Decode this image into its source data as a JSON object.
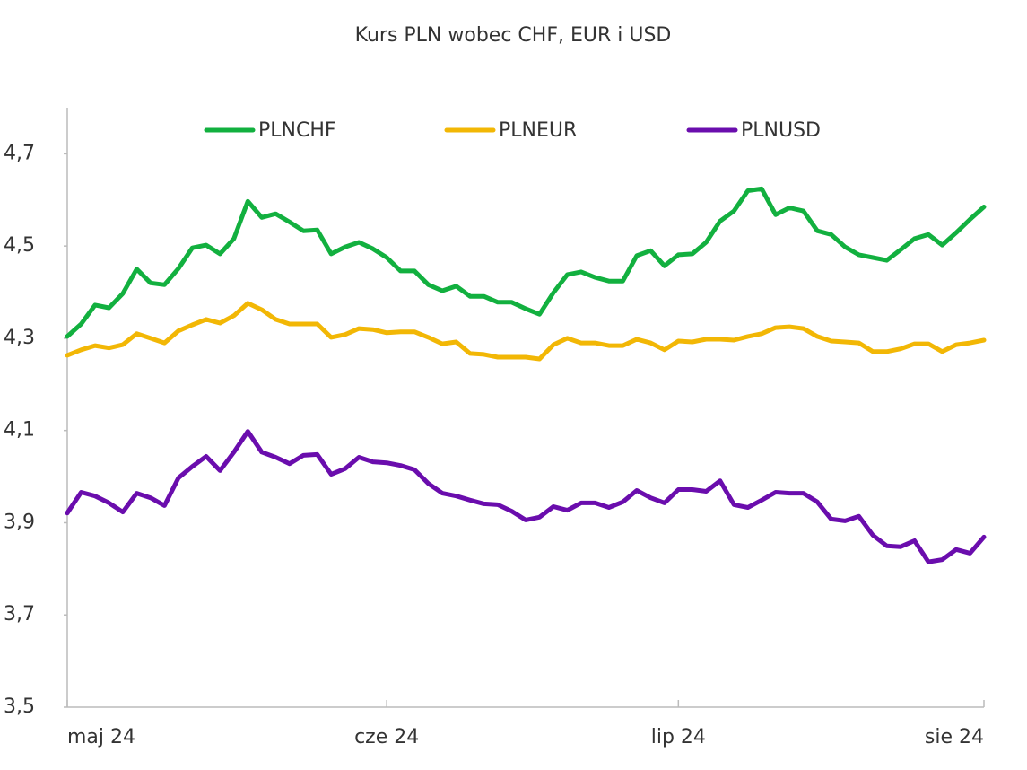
{
  "chart_data": {
    "type": "line",
    "title": "Kurs PLN wobec CHF, EUR i USD",
    "categories": [
      "maj 24",
      null,
      null,
      null,
      null,
      null,
      null,
      null,
      null,
      null,
      null,
      null,
      null,
      null,
      null,
      null,
      null,
      null,
      null,
      null,
      null,
      null,
      null,
      "cze 24",
      null,
      null,
      null,
      null,
      null,
      null,
      null,
      null,
      null,
      null,
      null,
      null,
      null,
      null,
      null,
      null,
      null,
      null,
      null,
      null,
      "lip 24",
      null,
      null,
      null,
      null,
      null,
      null,
      null,
      null,
      null,
      null,
      null,
      null,
      null,
      null,
      null,
      null,
      null,
      null,
      null,
      null,
      null,
      "sie 24"
    ],
    "series": [
      {
        "name": "PLNCHF",
        "color": "#12b03f",
        "values": [
          4.304,
          4.331,
          4.372,
          4.366,
          4.397,
          4.45,
          4.42,
          4.416,
          4.451,
          4.496,
          4.502,
          4.483,
          4.516,
          4.597,
          4.562,
          4.57,
          4.552,
          4.533,
          4.535,
          4.483,
          4.498,
          4.508,
          4.494,
          4.475,
          4.446,
          4.446,
          4.416,
          4.403,
          4.413,
          4.391,
          4.391,
          4.378,
          4.378,
          4.364,
          4.352,
          4.399,
          4.438,
          4.444,
          4.432,
          4.424,
          4.424,
          4.479,
          4.49,
          4.457,
          4.481,
          4.483,
          4.508,
          4.554,
          4.576,
          4.62,
          4.624,
          4.568,
          4.583,
          4.576,
          4.533,
          4.525,
          4.498,
          4.481,
          4.475,
          4.469,
          4.492,
          4.516,
          4.525,
          4.502,
          4.529,
          4.558,
          4.585
        ]
      },
      {
        "name": "PLNEUR",
        "color": "#f2b705",
        "values": [
          4.263,
          4.275,
          4.284,
          4.279,
          4.286,
          4.31,
          4.3,
          4.29,
          4.316,
          4.329,
          4.341,
          4.333,
          4.349,
          4.376,
          4.362,
          4.341,
          4.331,
          4.331,
          4.331,
          4.302,
          4.308,
          4.321,
          4.319,
          4.312,
          4.314,
          4.314,
          4.302,
          4.288,
          4.292,
          4.267,
          4.265,
          4.259,
          4.259,
          4.259,
          4.255,
          4.286,
          4.3,
          4.29,
          4.29,
          4.284,
          4.284,
          4.298,
          4.29,
          4.275,
          4.294,
          4.292,
          4.298,
          4.298,
          4.296,
          4.304,
          4.31,
          4.323,
          4.325,
          4.321,
          4.304,
          4.294,
          4.292,
          4.29,
          4.271,
          4.271,
          4.277,
          4.288,
          4.288,
          4.271,
          4.286,
          4.29,
          4.296
        ]
      },
      {
        "name": "PLNUSD",
        "color": "#6a0dad",
        "values": [
          3.921,
          3.966,
          3.958,
          3.943,
          3.923,
          3.964,
          3.954,
          3.937,
          3.997,
          4.022,
          4.044,
          4.013,
          4.053,
          4.098,
          4.053,
          4.042,
          4.028,
          4.046,
          4.048,
          4.005,
          4.017,
          4.042,
          4.032,
          4.03,
          4.024,
          4.015,
          3.985,
          3.964,
          3.958,
          3.949,
          3.941,
          3.939,
          3.925,
          3.906,
          3.912,
          3.935,
          3.927,
          3.943,
          3.943,
          3.933,
          3.945,
          3.97,
          3.954,
          3.943,
          3.972,
          3.972,
          3.968,
          3.991,
          3.939,
          3.933,
          3.949,
          3.966,
          3.964,
          3.964,
          3.945,
          3.908,
          3.904,
          3.914,
          3.873,
          3.85,
          3.848,
          3.861,
          3.815,
          3.82,
          3.842,
          3.834,
          3.869
        ]
      }
    ],
    "ylim": [
      3.5,
      4.8
    ],
    "yticks": [
      {
        "value": 3.5,
        "label": "3,5"
      },
      {
        "value": 3.7,
        "label": "3,7"
      },
      {
        "value": 3.9,
        "label": "3,9"
      },
      {
        "value": 4.1,
        "label": "4,1"
      },
      {
        "value": 4.3,
        "label": "4,3"
      },
      {
        "value": 4.5,
        "label": "4,5"
      },
      {
        "value": 4.7,
        "label": "4,7"
      }
    ],
    "grid": false,
    "legend": "top"
  }
}
